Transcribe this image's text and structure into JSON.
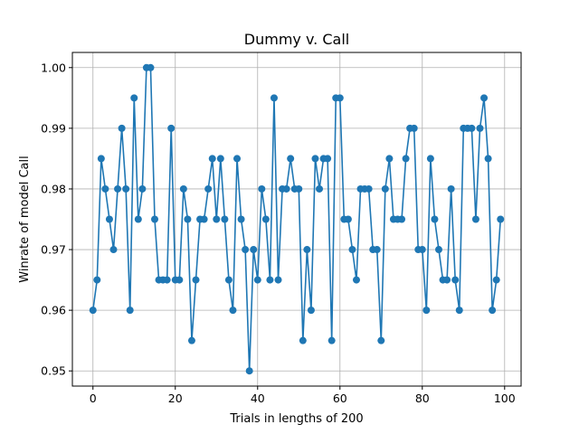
{
  "chart_data": {
    "type": "line",
    "title": "Dummy v. Call",
    "xlabel": "Trials in lengths of 200",
    "ylabel": "Winrate of model Call",
    "xlim": [
      -5,
      104
    ],
    "ylim": [
      0.9475,
      1.0025
    ],
    "xticks": [
      0,
      20,
      40,
      60,
      80,
      100
    ],
    "yticks": [
      0.95,
      0.96,
      0.97,
      0.98,
      0.99,
      1.0
    ],
    "xtick_labels": [
      "0",
      "20",
      "40",
      "60",
      "80",
      "100"
    ],
    "ytick_labels": [
      "0.95",
      "0.96",
      "0.97",
      "0.98",
      "0.99",
      "1.00"
    ],
    "grid": true,
    "marker": "circle",
    "color": "#1f77b4",
    "series": [
      {
        "x": [
          0,
          1,
          2,
          3,
          4,
          5,
          6,
          7,
          8,
          9,
          10,
          11,
          12,
          13,
          14,
          15,
          16,
          17,
          18,
          19,
          20,
          21,
          22,
          23,
          24,
          25,
          26,
          27,
          28,
          29,
          30,
          31,
          32,
          33,
          34,
          35,
          36,
          37,
          38,
          39,
          40,
          41,
          42,
          43,
          44,
          45,
          46,
          47,
          48,
          49,
          50,
          51,
          52,
          53,
          54,
          55,
          56,
          57,
          58,
          59,
          60,
          61,
          62,
          63,
          64,
          65,
          66,
          67,
          68,
          69,
          70,
          71,
          72,
          73,
          74,
          75,
          76,
          77,
          78,
          79,
          80,
          81,
          82,
          83,
          84,
          85,
          86,
          87,
          88,
          89,
          90,
          91,
          92,
          93,
          94,
          95,
          96,
          97,
          98,
          99
        ],
        "values": [
          0.96,
          0.965,
          0.985,
          0.98,
          0.975,
          0.97,
          0.98,
          0.99,
          0.98,
          0.96,
          0.995,
          0.975,
          0.98,
          1.0,
          1.0,
          0.975,
          0.965,
          0.965,
          0.965,
          0.99,
          0.965,
          0.965,
          0.98,
          0.975,
          0.955,
          0.965,
          0.975,
          0.975,
          0.98,
          0.985,
          0.975,
          0.985,
          0.975,
          0.965,
          0.96,
          0.985,
          0.975,
          0.97,
          0.95,
          0.97,
          0.965,
          0.98,
          0.975,
          0.965,
          0.995,
          0.965,
          0.98,
          0.98,
          0.985,
          0.98,
          0.98,
          0.955,
          0.97,
          0.96,
          0.985,
          0.98,
          0.985,
          0.985,
          0.955,
          0.995,
          0.995,
          0.975,
          0.975,
          0.97,
          0.965,
          0.98,
          0.98,
          0.98,
          0.97,
          0.97,
          0.955,
          0.98,
          0.985,
          0.975,
          0.975,
          0.975,
          0.985,
          0.99,
          0.99,
          0.97,
          0.97,
          0.96,
          0.985,
          0.975,
          0.97,
          0.965,
          0.965,
          0.98,
          0.965,
          0.96,
          0.99,
          0.99,
          0.99,
          0.975,
          0.99,
          0.995,
          0.985,
          0.96,
          0.965,
          0.975
        ]
      }
    ]
  }
}
